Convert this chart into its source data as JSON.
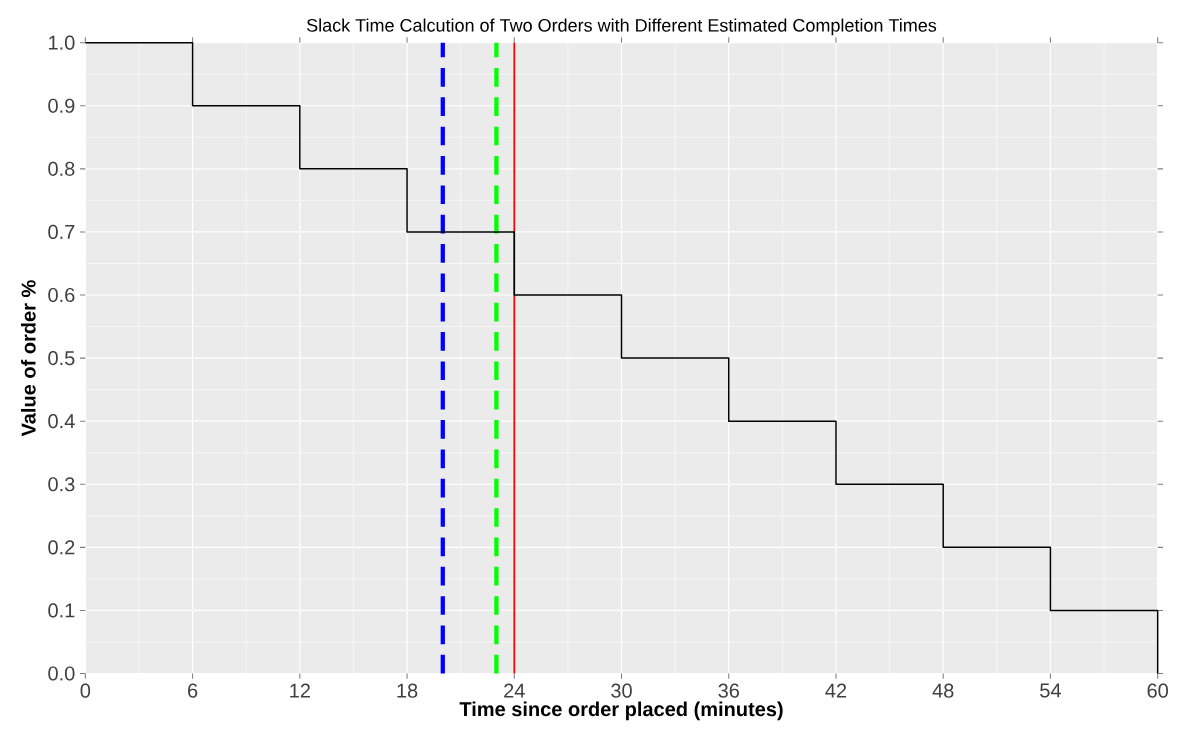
{
  "chart_data": {
    "type": "step",
    "title": "Slack Time Calcution of Two Orders with Different Estimated Completion Times",
    "xlabel": "Time since order placed (minutes)",
    "ylabel": "Value of order %",
    "x": [
      0,
      6,
      12,
      18,
      24,
      30,
      36,
      42,
      48,
      54,
      60
    ],
    "series": [
      {
        "color": "#000000",
        "values": [
          1.0,
          0.9,
          0.8,
          0.7,
          0.6,
          0.5,
          0.4,
          0.3,
          0.2,
          0.1,
          0.0
        ]
      }
    ],
    "xlim": [
      0,
      60
    ],
    "ylim": [
      0,
      1
    ],
    "xticks": [
      0,
      6,
      12,
      18,
      24,
      30,
      36,
      42,
      48,
      54,
      60
    ],
    "yticks": [
      {
        "value": 0,
        "label": "0.0"
      },
      {
        "value": 0.1,
        "label": "0.1"
      },
      {
        "value": 0.2,
        "label": "0.2"
      },
      {
        "value": 0.3,
        "label": "0.3"
      },
      {
        "value": 0.4,
        "label": "0.4"
      },
      {
        "value": 0.5,
        "label": "0.5"
      },
      {
        "value": 0.6,
        "label": "0.6"
      },
      {
        "value": 0.7,
        "label": "0.7"
      },
      {
        "value": 0.8,
        "label": "0.8"
      },
      {
        "value": 0.9,
        "label": "0.9"
      },
      {
        "value": 1,
        "label": "1.0"
      }
    ],
    "ref_lines": [
      {
        "axis": "x",
        "value": 20,
        "color": "#0000ff",
        "line_style": "dashed"
      },
      {
        "axis": "x",
        "value": 23,
        "color": "#00ff00",
        "line_style": "dashed"
      },
      {
        "axis": "x",
        "value": 24,
        "color": "#ff0000",
        "line_style": "solid"
      }
    ],
    "grid": true
  }
}
